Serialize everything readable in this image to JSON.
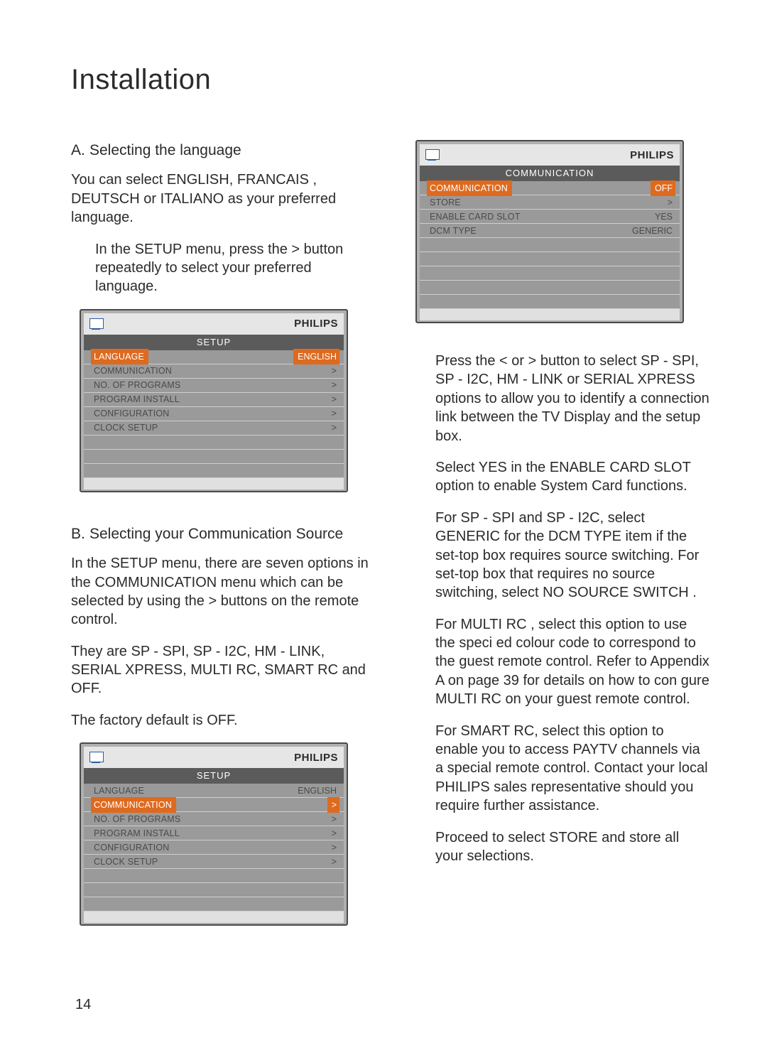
{
  "title": "Installation",
  "brand": "PHILIPS",
  "sectionA": {
    "letter": "A.",
    "heading": "Selecting the language",
    "para1": "You can select ENGLISH, FRANCAIS , DEUTSCH  or ITALIANO   as your preferred language.",
    "para2": "In the SETUP  menu, press the > button repeatedly to select your preferred language."
  },
  "menu1": {
    "title": "SETUP",
    "rows": [
      {
        "label": "LANGUAGE",
        "value": "ENGLISH",
        "hi": true
      },
      {
        "label": "COMMUNICATION",
        "value": ">"
      },
      {
        "label": "NO. OF PROGRAMS",
        "value": ">"
      },
      {
        "label": "PROGRAM INSTALL",
        "value": ">"
      },
      {
        "label": "CONFIGURATION",
        "value": ">"
      },
      {
        "label": "CLOCK SETUP",
        "value": ">"
      }
    ],
    "blank_rows": 3
  },
  "sectionB": {
    "letter": "B.",
    "heading": "Selecting your  Communication Source",
    "para1": "In the SETUP  menu, there are seven options in the COMMUNICATION    menu which can be selected by using the > buttons on the remote control.",
    "para2": "They are SP - SPI, SP - I2C, HM - LINK, SERIAL XPRESS, MULTI RC, SMART RC and OFF.",
    "para3": "The factory default is OFF."
  },
  "menu2": {
    "title": "SETUP",
    "rows": [
      {
        "label": "LANGUAGE",
        "value": "ENGLISH"
      },
      {
        "label": "COMMUNICATION",
        "value": ">",
        "hi": true
      },
      {
        "label": "NO. OF PROGRAMS",
        "value": ">"
      },
      {
        "label": "PROGRAM INSTALL",
        "value": ">"
      },
      {
        "label": "CONFIGURATION",
        "value": ">"
      },
      {
        "label": "CLOCK SETUP",
        "value": ">"
      }
    ],
    "blank_rows": 3
  },
  "menu3": {
    "title": "COMMUNICATION",
    "rows": [
      {
        "label": "COMMUNICATION",
        "value": "OFF",
        "hi": true
      },
      {
        "label": "STORE",
        "value": ">"
      },
      {
        "label": "ENABLE CARD SLOT",
        "value": "YES"
      },
      {
        "label": "DCM TYPE",
        "value": "GENERIC"
      }
    ],
    "blank_rows": 5
  },
  "right_paras": {
    "p1": "Press the <  or  >  button to select SP - SPI, SP - I2C, HM - LINK  or SERIAL XPRESS options to allow you to identify a connection link between the TV Display and the setup box.",
    "p2": "Select YES in the ENABLE CARD SLOT  option to enable System Card functions.",
    "p3": "For SP - SPI and SP - I2C,  select GENERIC  for the DCM TYPE  item if the set-top box requires source switching. For set-top box that requires no source switching, select NO SOURCE SWITCH   .",
    "p4": "For MULTI RC , select this option to use the speci ed colour code to correspond to the guest remote control. Refer to Appendix A on page 39 for details on how to con gure MULTI RC on your guest remote control.",
    "p5": "For SMART RC,  select this option to enable you to access PAYTV channels via a special remote control. Contact your local PHILIPS sales representative should you require further assistance.",
    "p6": "Proceed to select STORE  and store all your selections."
  },
  "page_number": "14"
}
